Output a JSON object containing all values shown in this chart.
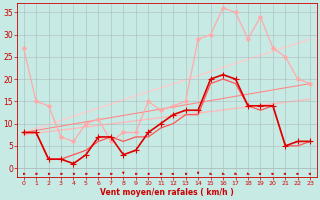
{
  "xlabel": "Vent moyen/en rafales ( km/h )",
  "background_color": "#c8eae4",
  "grid_color": "#aabbbb",
  "x_ticks": [
    0,
    1,
    2,
    3,
    4,
    5,
    6,
    7,
    8,
    9,
    10,
    11,
    12,
    13,
    14,
    15,
    16,
    17,
    18,
    19,
    20,
    21,
    22,
    23
  ],
  "ylim": [
    -2,
    37
  ],
  "xlim": [
    -0.5,
    23.5
  ],
  "y_ticks": [
    0,
    5,
    10,
    15,
    20,
    25,
    30,
    35
  ],
  "lines": [
    {
      "x": [
        0,
        1,
        2,
        3,
        4,
        5,
        6,
        7,
        8,
        9,
        10,
        11,
        12,
        13,
        14,
        15,
        16,
        17,
        18,
        19,
        20,
        21,
        22,
        23
      ],
      "y": [
        27,
        15,
        14,
        7,
        6,
        10,
        11,
        6,
        8,
        8,
        15,
        13,
        14,
        15,
        29,
        30,
        36,
        35,
        29,
        34,
        27,
        25,
        20,
        19
      ],
      "color": "#ffaaaa",
      "lw": 0.9,
      "marker": "D",
      "ms": 2.0,
      "zorder": 3
    },
    {
      "x": [
        0,
        1,
        2,
        3,
        4,
        5,
        6,
        7,
        8,
        9,
        10,
        11,
        12,
        13,
        14,
        15,
        16,
        17,
        18,
        19,
        20,
        21,
        22,
        23
      ],
      "y": [
        8,
        8,
        2,
        2,
        1,
        3,
        7,
        7,
        3,
        4,
        8,
        10,
        12,
        13,
        13,
        20,
        21,
        20,
        14,
        14,
        14,
        5,
        6,
        6
      ],
      "color": "#dd0000",
      "lw": 1.2,
      "marker": "+",
      "ms": 4,
      "zorder": 5
    },
    {
      "x": [
        0,
        1,
        2,
        3,
        4,
        5,
        6,
        7,
        8,
        9,
        10,
        11,
        12,
        13,
        14,
        15,
        16,
        17,
        18,
        19,
        20,
        21,
        22,
        23
      ],
      "y": [
        8,
        8,
        2,
        2,
        3,
        4,
        6,
        7,
        6,
        7,
        7,
        9,
        10,
        12,
        12,
        19,
        20,
        19,
        14,
        13,
        14,
        5,
        5,
        6
      ],
      "color": "#ff5555",
      "lw": 0.9,
      "marker": null,
      "ms": 0,
      "zorder": 4
    },
    {
      "x": [
        0,
        23
      ],
      "y": [
        7.5,
        15.5
      ],
      "color": "#ffbbbb",
      "lw": 1.0,
      "marker": null,
      "ms": 0,
      "zorder": 1
    },
    {
      "x": [
        0,
        23
      ],
      "y": [
        8.0,
        29.0
      ],
      "color": "#ffcccc",
      "lw": 1.0,
      "marker": null,
      "ms": 0,
      "zorder": 1
    },
    {
      "x": [
        0,
        23
      ],
      "y": [
        8.0,
        19.0
      ],
      "color": "#ff8888",
      "lw": 0.8,
      "marker": null,
      "ms": 0,
      "zorder": 2
    }
  ],
  "arrows": {
    "y": -1.3,
    "color": "#cc0000",
    "directions": [
      0,
      0,
      0,
      0,
      0,
      0,
      0,
      0,
      270,
      0,
      0,
      0,
      180,
      0,
      270,
      315,
      315,
      315,
      315,
      180,
      180,
      180,
      180,
      180
    ]
  }
}
